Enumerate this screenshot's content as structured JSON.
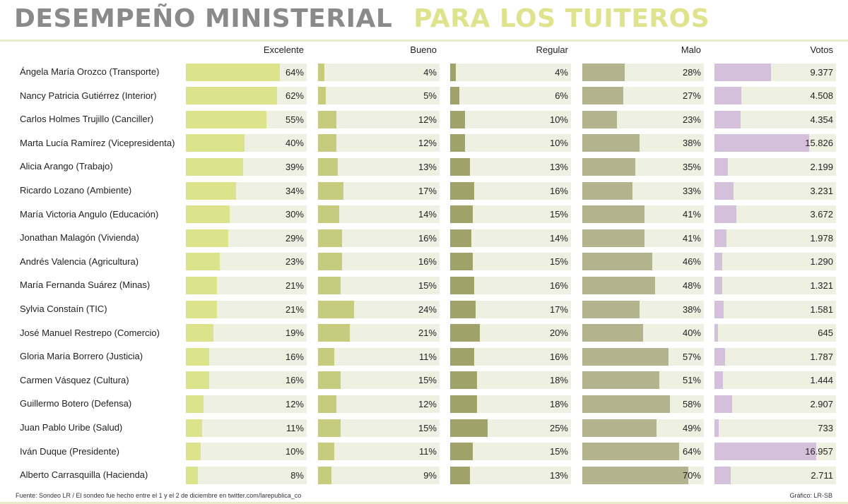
{
  "title": {
    "part1": "DESEMPEÑO MINISTERIAL",
    "part2": "PARA LOS TUITEROS"
  },
  "footer": {
    "source": "Fuente:  Sondeo LR / El sondeo fue hecho entre el 1 y el 2 de diciembre en twitter.com/larepublica_co",
    "credit": "Gráfico: LR-SB"
  },
  "colors": {
    "excelente": "#dde38a",
    "bueno": "#c7cb7e",
    "regular": "#a1a26a",
    "malo": "#b3b38e",
    "votos": "#d5c0dc",
    "track": "#eef1e2"
  },
  "chart_data": {
    "type": "bar",
    "title": "DESEMPEÑO MINISTERIAL PARA LOS TUITEROS",
    "columns": [
      "Excelente",
      "Bueno",
      "Regular",
      "Malo",
      "Votos"
    ],
    "rows": [
      {
        "name": "Ángela María Orozco (Transporte)",
        "excelente": 64,
        "bueno": 4,
        "regular": 4,
        "malo": 28,
        "votos": 9377,
        "votos_label": "9.377"
      },
      {
        "name": "Nancy Patricia Gutiérrez (Interior)",
        "excelente": 62,
        "bueno": 5,
        "regular": 6,
        "malo": 27,
        "votos": 4508,
        "votos_label": "4.508"
      },
      {
        "name": "Carlos Holmes Trujillo (Canciller)",
        "excelente": 55,
        "bueno": 12,
        "regular": 10,
        "malo": 23,
        "votos": 4354,
        "votos_label": "4.354"
      },
      {
        "name": "Marta Lucía Ramírez (Vicepresidenta)",
        "excelente": 40,
        "bueno": 12,
        "regular": 10,
        "malo": 38,
        "votos": 15826,
        "votos_label": "15.826"
      },
      {
        "name": "Alicia Arango (Trabajo)",
        "excelente": 39,
        "bueno": 13,
        "regular": 13,
        "malo": 35,
        "votos": 2199,
        "votos_label": "2.199"
      },
      {
        "name": "Ricardo Lozano (Ambiente)",
        "excelente": 34,
        "bueno": 17,
        "regular": 16,
        "malo": 33,
        "votos": 3231,
        "votos_label": "3.231"
      },
      {
        "name": "María Victoria Angulo (Educación)",
        "excelente": 30,
        "bueno": 14,
        "regular": 15,
        "malo": 41,
        "votos": 3672,
        "votos_label": "3.672"
      },
      {
        "name": "Jonathan Malagón (Vivienda)",
        "excelente": 29,
        "bueno": 16,
        "regular": 14,
        "malo": 41,
        "votos": 1978,
        "votos_label": "1.978"
      },
      {
        "name": "Andrés Valencia (Agricultura)",
        "excelente": 23,
        "bueno": 16,
        "regular": 15,
        "malo": 46,
        "votos": 1290,
        "votos_label": "1.290"
      },
      {
        "name": "María Fernanda Suárez (Minas)",
        "excelente": 21,
        "bueno": 15,
        "regular": 16,
        "malo": 48,
        "votos": 1321,
        "votos_label": "1.321"
      },
      {
        "name": "Sylvia Constaín (TIC)",
        "excelente": 21,
        "bueno": 24,
        "regular": 17,
        "malo": 38,
        "votos": 1581,
        "votos_label": "1.581"
      },
      {
        "name": "José Manuel Restrepo (Comercio)",
        "excelente": 19,
        "bueno": 21,
        "regular": 20,
        "malo": 40,
        "votos": 645,
        "votos_label": "645"
      },
      {
        "name": "Gloria María Borrero (Justicia)",
        "excelente": 16,
        "bueno": 11,
        "regular": 16,
        "malo": 57,
        "votos": 1787,
        "votos_label": "1.787"
      },
      {
        "name": "Carmen Vásquez (Cultura)",
        "excelente": 16,
        "bueno": 15,
        "regular": 18,
        "malo": 51,
        "votos": 1444,
        "votos_label": "1.444"
      },
      {
        "name": "Guillermo Botero (Defensa)",
        "excelente": 12,
        "bueno": 12,
        "regular": 18,
        "malo": 58,
        "votos": 2907,
        "votos_label": "2.907"
      },
      {
        "name": "Juan Pablo Uribe (Salud)",
        "excelente": 11,
        "bueno": 15,
        "regular": 25,
        "malo": 49,
        "votos": 733,
        "votos_label": "733"
      },
      {
        "name": "Iván Duque (Presidente)",
        "excelente": 10,
        "bueno": 11,
        "regular": 15,
        "malo": 64,
        "votos": 16957,
        "votos_label": "16.957"
      },
      {
        "name": "Alberto Carrasquilla (Hacienda)",
        "excelente": 8,
        "bueno": 9,
        "regular": 13,
        "malo": 70,
        "votos": 2711,
        "votos_label": "2.711"
      }
    ]
  }
}
